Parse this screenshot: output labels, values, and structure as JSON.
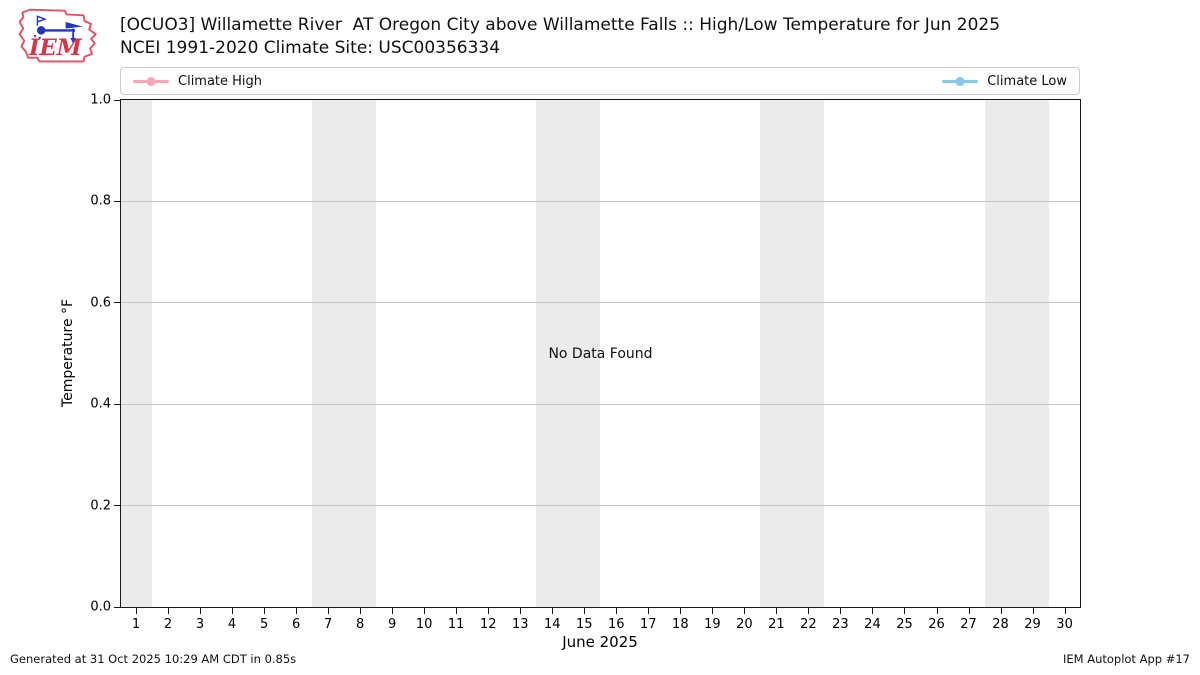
{
  "header": {
    "logo": {
      "icon": "iem-iowa-weathervane-logo",
      "text": "IEM"
    },
    "title_line1": "[OCUO3] Willamette River  AT Oregon City above Willamette Falls :: High/Low Temperature for Jun 2025",
    "title_line2": "NCEI 1991-2020 Climate Site: USC00356334"
  },
  "legend": {
    "items": [
      {
        "label": "Climate High",
        "color": "#f7a6b6"
      },
      {
        "label": "Climate Low",
        "color": "#85c9e6"
      }
    ]
  },
  "chart_data": {
    "type": "line",
    "title": "[OCUO3] Willamette River  AT Oregon City above Willamette Falls :: High/Low Temperature for Jun 2025",
    "subtitle": "NCEI 1991-2020 Climate Site: USC00356334",
    "xlabel": "June 2025",
    "ylabel": "Temperature °F",
    "xlim": [
      0.5,
      30.5
    ],
    "ylim": [
      0.0,
      1.0
    ],
    "grid": true,
    "legend_position": "top",
    "xticks": [
      1,
      2,
      3,
      4,
      5,
      6,
      7,
      8,
      9,
      10,
      11,
      12,
      13,
      14,
      15,
      16,
      17,
      18,
      19,
      20,
      21,
      22,
      23,
      24,
      25,
      26,
      27,
      28,
      29,
      30
    ],
    "yticks": [
      {
        "value": 0.0,
        "label": "0.0"
      },
      {
        "value": 0.2,
        "label": "0.2"
      },
      {
        "value": 0.4,
        "label": "0.4"
      },
      {
        "value": 0.6,
        "label": "0.6"
      },
      {
        "value": 0.8,
        "label": "0.8"
      },
      {
        "value": 1.0,
        "label": "1.0"
      }
    ],
    "series": [
      {
        "name": "Climate High",
        "color": "#f7a6b6",
        "marker": "circle",
        "x": [],
        "values": []
      },
      {
        "name": "Climate Low",
        "color": "#85c9e6",
        "marker": "circle",
        "x": [],
        "values": []
      }
    ],
    "annotations": [
      {
        "text": "No Data Found",
        "x": 0.5,
        "y": 0.5
      }
    ],
    "weekend_shading": {
      "color": "#ebebeb",
      "day_ranges": [
        [
          1,
          1
        ],
        [
          7,
          8
        ],
        [
          14,
          15
        ],
        [
          21,
          22
        ],
        [
          28,
          29
        ]
      ]
    }
  },
  "footer": {
    "left": "Generated at 31 Oct 2025 10:29 AM CDT in 0.85s",
    "right": "IEM Autoplot App #17"
  }
}
